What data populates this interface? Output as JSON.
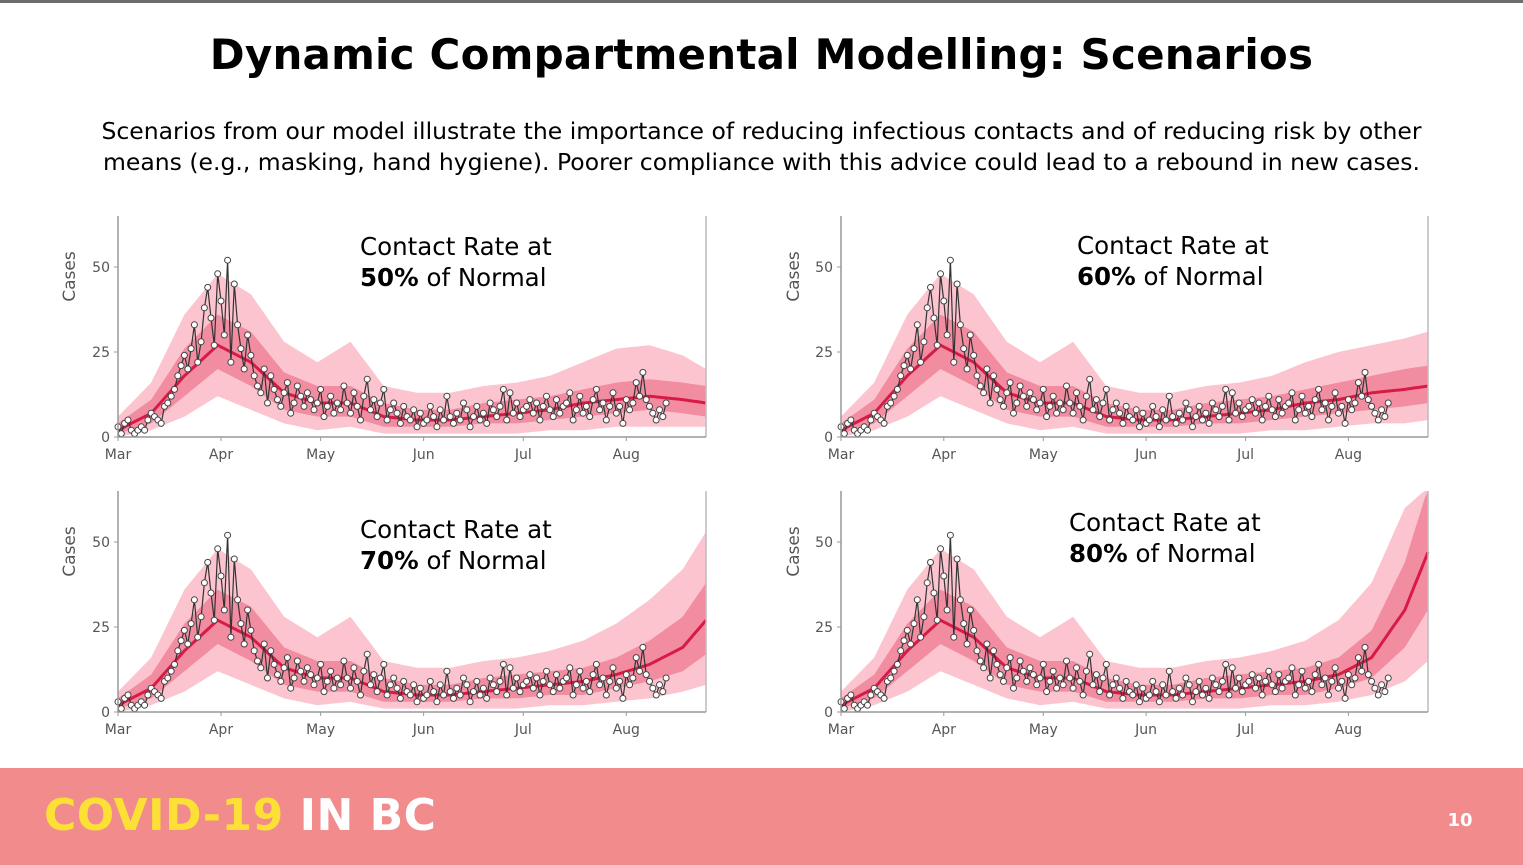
{
  "slide": {
    "title": "Dynamic Compartmental Modelling: Scenarios",
    "subtitle_line1": "Scenarios from our model illustrate the importance of reducing infectious contacts and of reducing risk by other",
    "subtitle_line2": "means (e.g., masking, hand hygiene). Poorer compliance with this advice could lead to a rebound in new cases.",
    "footer_brand_part1": "COVID-19",
    "footer_brand_part2": "IN BC",
    "page_number": "10",
    "colors": {
      "band_outer": "#fcc4cf",
      "band_inner": "#f18ca1",
      "median_line": "#d81b46",
      "observed_line": "#333333",
      "footer_bg": "#f28b8c",
      "brand_yellow": "#fce035"
    }
  },
  "observed": [
    3,
    1,
    4,
    5,
    2,
    1,
    2,
    3,
    2,
    5,
    7,
    6,
    5,
    4,
    9,
    10,
    12,
    14,
    18,
    21,
    24,
    20,
    26,
    33,
    22,
    28,
    38,
    44,
    35,
    27,
    48,
    40,
    30,
    52,
    22,
    45,
    33,
    26,
    20,
    30,
    24,
    18,
    15,
    13,
    20,
    10,
    18,
    14,
    11,
    9,
    13,
    16,
    7,
    10,
    15,
    12,
    9,
    13,
    11,
    8,
    10,
    14,
    6,
    9,
    12,
    7,
    10,
    8,
    15,
    10,
    7,
    13,
    9,
    5,
    12,
    17,
    8,
    11,
    6,
    10,
    14,
    5,
    8,
    10,
    7,
    4,
    9,
    6,
    5,
    8,
    3,
    7,
    4,
    5,
    9,
    6,
    3,
    8,
    5,
    12,
    6,
    4,
    7,
    5,
    10,
    8,
    3,
    6,
    9,
    5,
    7,
    4,
    10,
    8,
    6,
    9,
    14,
    5,
    13,
    7,
    10,
    6,
    8,
    9,
    11,
    7,
    10,
    5,
    9,
    12,
    8,
    6,
    11,
    7,
    9,
    10,
    13,
    5,
    8,
    12,
    7,
    9,
    6,
    11,
    14,
    8,
    10,
    5,
    9,
    13,
    7,
    9,
    4,
    11,
    8,
    10,
    16,
    12,
    19,
    11,
    9,
    7,
    5,
    8,
    6,
    10
  ],
  "charts": [
    {
      "caption_prefix": "Contact Rate at",
      "caption_pct": "50%",
      "caption_suffix": "of Normal",
      "chart_data": {
        "type": "line",
        "ylabel": "Cases",
        "ylim": [
          0,
          65
        ],
        "yticks": [
          0,
          25,
          50
        ],
        "xticks": [
          "Mar",
          "Apr",
          "May",
          "Jun",
          "Jul",
          "Aug"
        ],
        "x_start": "2020-03-01",
        "x_end": "2020-08-25",
        "series": [
          {
            "x": [
              0,
              10,
              20,
              30,
              40,
              50,
              60,
              70,
              80,
              90,
              100,
              110,
              120,
              130,
              140,
              150,
              160,
              170,
              177
            ],
            "median": [
              2,
              7,
              18,
              27,
              22,
              13,
              10,
              10,
              6,
              5,
              5,
              6,
              7,
              8,
              10,
              11,
              12,
              11,
              10
            ],
            "inner_lo": [
              1,
              4,
              12,
              20,
              15,
              8,
              6,
              6,
              3,
              3,
              3,
              4,
              4,
              5,
              6,
              7,
              8,
              7,
              6
            ],
            "inner_hi": [
              4,
              11,
              26,
              36,
              31,
              19,
              15,
              15,
              10,
              8,
              8,
              10,
              11,
              12,
              14,
              16,
              17,
              16,
              15
            ],
            "outer_lo": [
              0,
              2,
              6,
              12,
              8,
              4,
              2,
              3,
              1,
              1,
              1,
              1,
              1,
              2,
              2,
              3,
              3,
              3,
              3
            ],
            "outer_hi": [
              6,
              16,
              36,
              48,
              42,
              28,
              22,
              28,
              15,
              13,
              13,
              15,
              16,
              18,
              22,
              26,
              27,
              24,
              20
            ]
          }
        ]
      }
    },
    {
      "caption_prefix": "Contact Rate at",
      "caption_pct": "60%",
      "caption_suffix": "of Normal",
      "chart_data": {
        "type": "line",
        "ylabel": "Cases",
        "ylim": [
          0,
          65
        ],
        "yticks": [
          0,
          25,
          50
        ],
        "xticks": [
          "Mar",
          "Apr",
          "May",
          "Jun",
          "Jul",
          "Aug"
        ],
        "x_start": "2020-03-01",
        "x_end": "2020-08-25",
        "series": [
          {
            "x": [
              0,
              10,
              20,
              30,
              40,
              50,
              60,
              70,
              80,
              90,
              100,
              110,
              120,
              130,
              140,
              150,
              160,
              170,
              177
            ],
            "median": [
              2,
              7,
              18,
              27,
              22,
              13,
              10,
              10,
              6,
              5,
              5,
              6,
              7,
              8,
              10,
              11,
              13,
              14,
              15
            ],
            "inner_lo": [
              1,
              4,
              12,
              20,
              15,
              8,
              6,
              6,
              3,
              3,
              3,
              4,
              4,
              5,
              6,
              7,
              8,
              9,
              10
            ],
            "inner_hi": [
              4,
              11,
              26,
              36,
              31,
              19,
              15,
              15,
              10,
              8,
              8,
              10,
              11,
              12,
              14,
              16,
              18,
              20,
              21
            ],
            "outer_lo": [
              0,
              2,
              6,
              12,
              8,
              4,
              2,
              3,
              1,
              1,
              1,
              1,
              1,
              2,
              2,
              3,
              4,
              4,
              5
            ],
            "outer_hi": [
              6,
              16,
              36,
              48,
              42,
              28,
              22,
              28,
              15,
              13,
              13,
              15,
              16,
              18,
              22,
              25,
              27,
              29,
              31
            ]
          }
        ]
      }
    },
    {
      "caption_prefix": "Contact Rate at",
      "caption_pct": "70%",
      "caption_suffix": "of Normal",
      "chart_data": {
        "type": "line",
        "ylabel": "Cases",
        "ylim": [
          0,
          65
        ],
        "yticks": [
          0,
          25,
          50
        ],
        "xticks": [
          "Mar",
          "Apr",
          "May",
          "Jun",
          "Jul",
          "Aug"
        ],
        "x_start": "2020-03-01",
        "x_end": "2020-08-25",
        "series": [
          {
            "x": [
              0,
              10,
              20,
              30,
              40,
              50,
              60,
              70,
              80,
              90,
              100,
              110,
              120,
              130,
              140,
              150,
              160,
              170,
              177
            ],
            "median": [
              2,
              7,
              18,
              27,
              22,
              13,
              10,
              10,
              6,
              5,
              5,
              6,
              7,
              8,
              9,
              11,
              14,
              19,
              27
            ],
            "inner_lo": [
              1,
              4,
              12,
              20,
              15,
              8,
              6,
              6,
              3,
              3,
              3,
              4,
              4,
              5,
              5,
              7,
              9,
              12,
              17
            ],
            "inner_hi": [
              4,
              11,
              26,
              36,
              31,
              19,
              15,
              15,
              10,
              8,
              8,
              10,
              11,
              12,
              13,
              16,
              21,
              28,
              38
            ],
            "outer_lo": [
              0,
              2,
              6,
              12,
              8,
              4,
              2,
              3,
              1,
              1,
              1,
              1,
              1,
              2,
              2,
              3,
              4,
              6,
              8
            ],
            "outer_hi": [
              6,
              16,
              36,
              48,
              42,
              28,
              22,
              28,
              15,
              13,
              13,
              15,
              16,
              18,
              21,
              26,
              33,
              42,
              53
            ]
          }
        ]
      }
    },
    {
      "caption_prefix": "Contact Rate at",
      "caption_pct": "80%",
      "caption_suffix": "of Normal",
      "chart_data": {
        "type": "line",
        "ylabel": "Cases",
        "ylim": [
          0,
          65
        ],
        "yticks": [
          0,
          25,
          50
        ],
        "xticks": [
          "Mar",
          "Apr",
          "May",
          "Jun",
          "Jul",
          "Aug"
        ],
        "x_start": "2020-03-01",
        "x_end": "2020-08-25",
        "series": [
          {
            "x": [
              0,
              10,
              20,
              30,
              40,
              50,
              60,
              70,
              80,
              90,
              100,
              110,
              120,
              130,
              140,
              150,
              160,
              170,
              177
            ],
            "median": [
              2,
              7,
              18,
              27,
              22,
              13,
              10,
              10,
              6,
              5,
              5,
              6,
              7,
              8,
              9,
              11,
              16,
              30,
              47
            ],
            "inner_lo": [
              1,
              4,
              12,
              20,
              15,
              8,
              6,
              6,
              3,
              3,
              3,
              4,
              4,
              5,
              5,
              7,
              10,
              19,
              30
            ],
            "inner_hi": [
              4,
              11,
              26,
              36,
              31,
              19,
              15,
              15,
              10,
              8,
              8,
              10,
              11,
              12,
              13,
              16,
              24,
              44,
              66
            ],
            "outer_lo": [
              0,
              2,
              6,
              12,
              8,
              4,
              2,
              3,
              1,
              1,
              1,
              1,
              1,
              2,
              2,
              3,
              5,
              9,
              15
            ],
            "outer_hi": [
              6,
              16,
              36,
              48,
              42,
              28,
              22,
              28,
              15,
              13,
              13,
              15,
              16,
              18,
              21,
              27,
              38,
              60,
              66
            ]
          }
        ]
      }
    }
  ]
}
